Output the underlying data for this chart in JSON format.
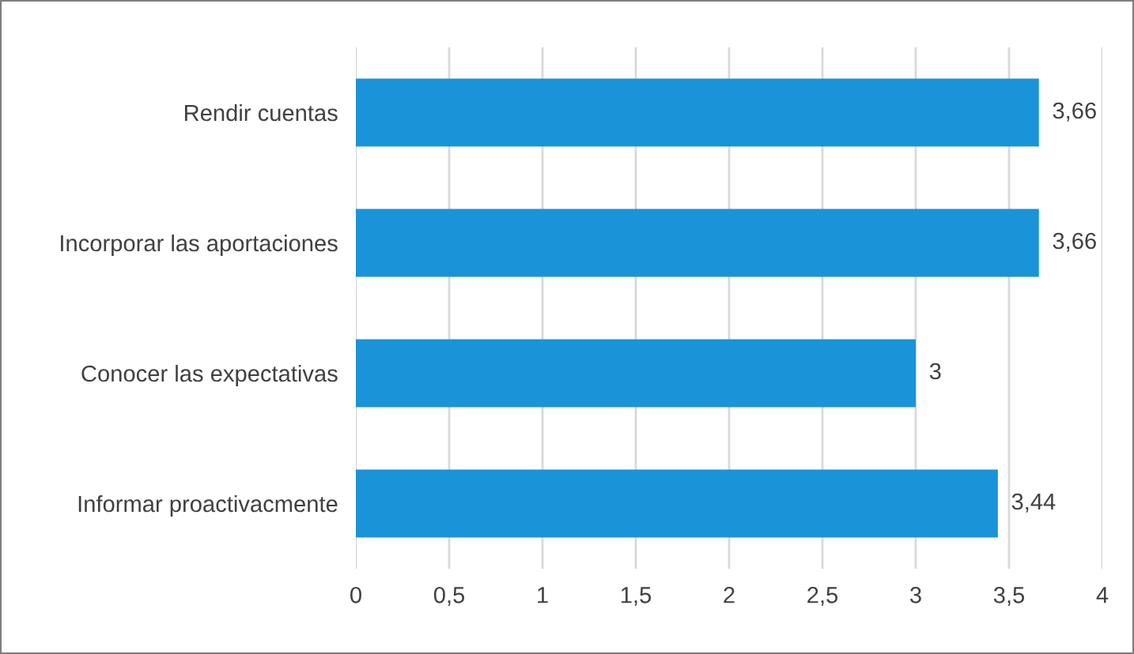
{
  "chart_data": {
    "type": "bar",
    "orientation": "horizontal",
    "categories": [
      "Rendir cuentas",
      "Incorporar las aportaciones",
      "Conocer las expectativas",
      "Informar proactivacmente"
    ],
    "values": [
      3.66,
      3.66,
      3,
      3.44
    ],
    "value_labels": [
      "3,66",
      "3,66",
      "3",
      "3,44"
    ],
    "color": "#1a93d8",
    "xlim": [
      0,
      4
    ],
    "xticks": [
      0,
      {
        "value": 0.5,
        "label": "0,5"
      },
      1,
      {
        "value": 1.5,
        "label": "1,5"
      },
      2,
      {
        "value": 2.5,
        "label": "2,5"
      },
      3,
      {
        "value": 3.5,
        "label": "3,5"
      },
      4
    ],
    "grid": "x"
  }
}
